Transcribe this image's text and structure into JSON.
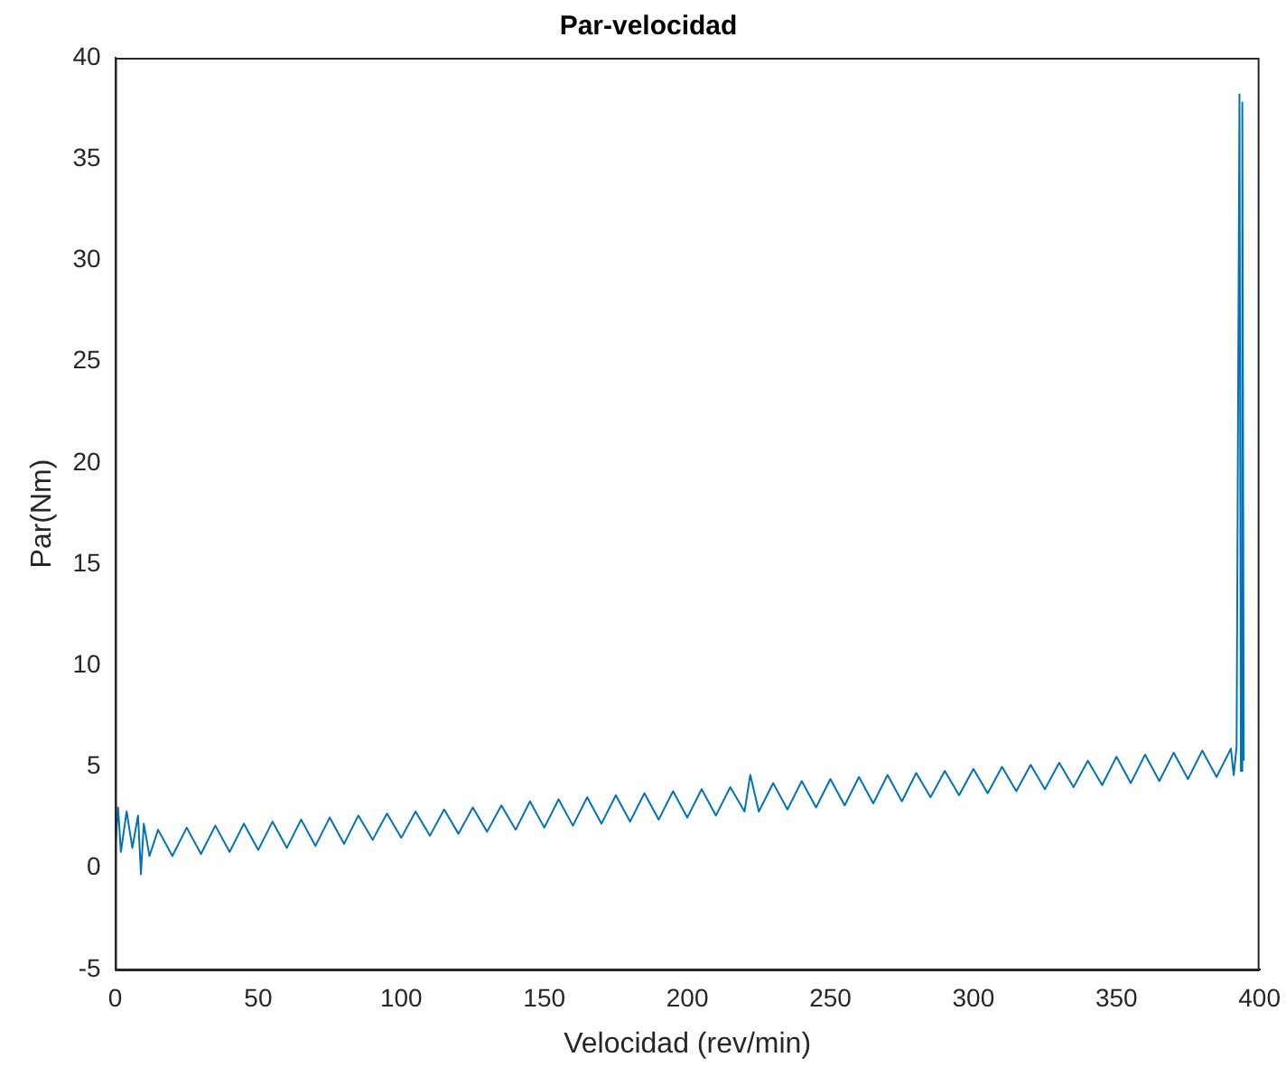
{
  "chart_data": {
    "type": "line",
    "title": "Par-velocidad",
    "xlabel": "Velocidad (rev/min)",
    "ylabel": "Par(Nm)",
    "xlim": [
      0,
      400
    ],
    "xticks": [
      0,
      50,
      100,
      150,
      200,
      250,
      300,
      350,
      400
    ],
    "ylim": [
      -5,
      40
    ],
    "yticks": [
      -5,
      0,
      5,
      10,
      15,
      20,
      25,
      30,
      35,
      40
    ],
    "grid": false,
    "legend": false,
    "marker": "none",
    "line_style": "solid",
    "series": [
      {
        "color": "#0072bd",
        "x": [
          0,
          1,
          2,
          4,
          6,
          8,
          9,
          10,
          12,
          15,
          20,
          25,
          30,
          35,
          40,
          45,
          50,
          55,
          60,
          65,
          70,
          75,
          80,
          85,
          90,
          95,
          100,
          105,
          110,
          115,
          120,
          125,
          130,
          135,
          140,
          145,
          150,
          155,
          160,
          165,
          170,
          175,
          180,
          185,
          190,
          195,
          200,
          205,
          210,
          215,
          220,
          222,
          225,
          230,
          235,
          240,
          245,
          250,
          255,
          260,
          265,
          270,
          275,
          280,
          285,
          290,
          295,
          300,
          305,
          310,
          315,
          320,
          325,
          330,
          335,
          340,
          345,
          350,
          355,
          360,
          365,
          370,
          375,
          380,
          385,
          390,
          391,
          392,
          393,
          393.5,
          394,
          394.5
        ],
        "values": [
          1.0,
          3.0,
          0.8,
          2.8,
          1.0,
          2.6,
          -0.3,
          2.2,
          0.6,
          1.9,
          0.6,
          2.0,
          0.7,
          2.1,
          0.8,
          2.2,
          0.9,
          2.3,
          1.0,
          2.4,
          1.1,
          2.5,
          1.2,
          2.6,
          1.4,
          2.7,
          1.5,
          2.8,
          1.6,
          2.9,
          1.7,
          3.0,
          1.8,
          3.1,
          1.9,
          3.3,
          2.0,
          3.4,
          2.1,
          3.5,
          2.2,
          3.6,
          2.3,
          3.7,
          2.4,
          3.8,
          2.5,
          3.9,
          2.6,
          4.0,
          2.8,
          4.6,
          2.8,
          4.2,
          2.9,
          4.3,
          3.0,
          4.4,
          3.1,
          4.5,
          3.2,
          4.6,
          3.3,
          4.7,
          3.5,
          4.8,
          3.6,
          4.9,
          3.7,
          5.0,
          3.8,
          5.1,
          3.9,
          5.2,
          4.0,
          5.3,
          4.1,
          5.5,
          4.2,
          5.6,
          4.3,
          5.7,
          4.4,
          5.8,
          4.5,
          5.9,
          4.6,
          6.0,
          38.2,
          4.8,
          37.8,
          5.3
        ]
      }
    ]
  }
}
